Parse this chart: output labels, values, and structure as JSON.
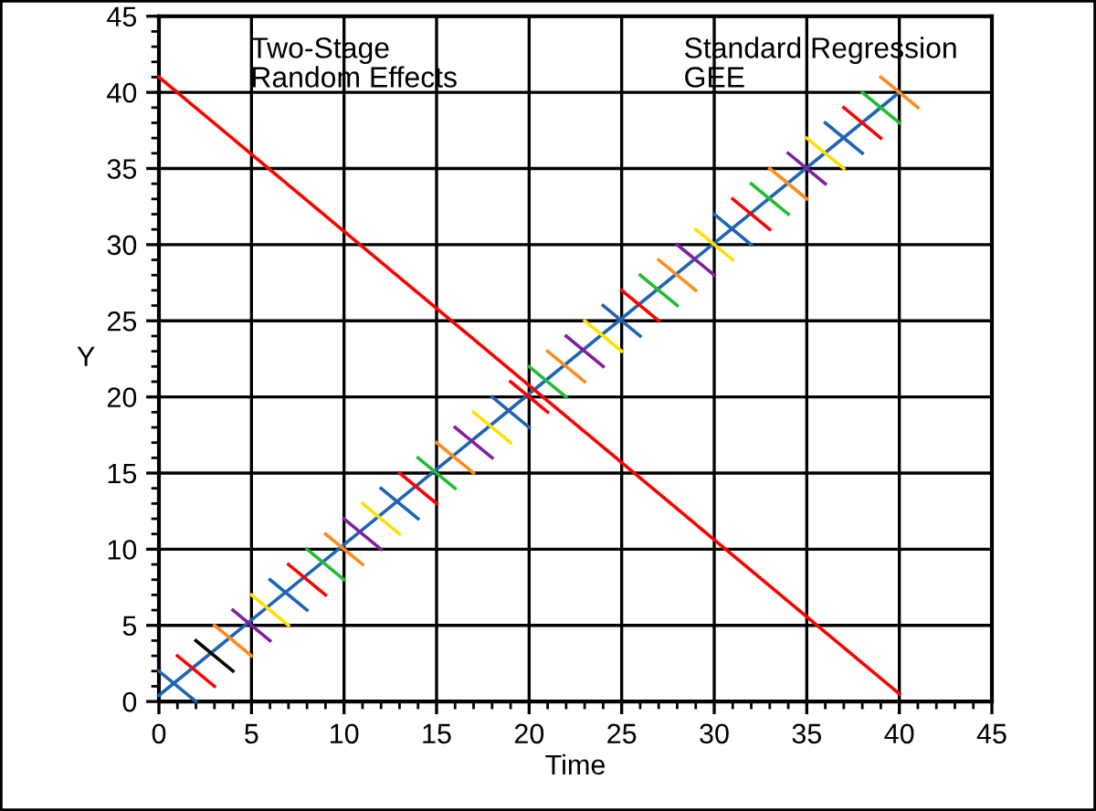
{
  "chart_data": {
    "type": "line",
    "xlabel": "Time",
    "ylabel": "Y",
    "xlim": [
      0,
      45
    ],
    "ylim": [
      0,
      45
    ],
    "xticks": [
      0,
      {
        "value": 1,
        "label": null
      },
      {
        "value": 2,
        "label": null
      },
      {
        "value": 3,
        "label": null
      },
      {
        "value": 4,
        "label": null
      },
      5,
      {
        "value": 6,
        "label": null
      },
      {
        "value": 7,
        "label": null
      },
      {
        "value": 8,
        "label": null
      },
      {
        "value": 9,
        "label": null
      },
      10,
      {
        "value": 11,
        "label": null
      },
      {
        "value": 12,
        "label": null
      },
      {
        "value": 13,
        "label": null
      },
      {
        "value": 14,
        "label": null
      },
      15,
      {
        "value": 16,
        "label": null
      },
      {
        "value": 17,
        "label": null
      },
      {
        "value": 18,
        "label": null
      },
      {
        "value": 19,
        "label": null
      },
      20,
      {
        "value": 21,
        "label": null
      },
      {
        "value": 22,
        "label": null
      },
      {
        "value": 23,
        "label": null
      },
      {
        "value": 24,
        "label": null
      },
      25,
      {
        "value": 26,
        "label": null
      },
      {
        "value": 27,
        "label": null
      },
      {
        "value": 28,
        "label": null
      },
      {
        "value": 29,
        "label": null
      },
      30,
      {
        "value": 31,
        "label": null
      },
      {
        "value": 32,
        "label": null
      },
      {
        "value": 33,
        "label": null
      },
      {
        "value": 34,
        "label": null
      },
      35,
      {
        "value": 36,
        "label": null
      },
      {
        "value": 37,
        "label": null
      },
      {
        "value": 38,
        "label": null
      },
      {
        "value": 39,
        "label": null
      },
      40,
      {
        "value": 41,
        "label": null
      },
      {
        "value": 42,
        "label": null
      },
      {
        "value": 43,
        "label": null
      },
      {
        "value": 44,
        "label": null
      },
      45
    ],
    "yticks": [
      0,
      {
        "value": 1,
        "label": null
      },
      {
        "value": 2,
        "label": null
      },
      {
        "value": 3,
        "label": null
      },
      {
        "value": 4,
        "label": null
      },
      5,
      {
        "value": 6,
        "label": null
      },
      {
        "value": 7,
        "label": null
      },
      {
        "value": 8,
        "label": null
      },
      {
        "value": 9,
        "label": null
      },
      10,
      {
        "value": 11,
        "label": null
      },
      {
        "value": 12,
        "label": null
      },
      {
        "value": 13,
        "label": null
      },
      {
        "value": 14,
        "label": null
      },
      15,
      {
        "value": 16,
        "label": null
      },
      {
        "value": 17,
        "label": null
      },
      {
        "value": 18,
        "label": null
      },
      {
        "value": 19,
        "label": null
      },
      20,
      {
        "value": 21,
        "label": null
      },
      {
        "value": 22,
        "label": null
      },
      {
        "value": 23,
        "label": null
      },
      {
        "value": 24,
        "label": null
      },
      25,
      {
        "value": 26,
        "label": null
      },
      {
        "value": 27,
        "label": null
      },
      {
        "value": 28,
        "label": null
      },
      {
        "value": 29,
        "label": null
      },
      30,
      {
        "value": 31,
        "label": null
      },
      {
        "value": 32,
        "label": null
      },
      {
        "value": 33,
        "label": null
      },
      {
        "value": 34,
        "label": null
      },
      35,
      {
        "value": 36,
        "label": null
      },
      {
        "value": 37,
        "label": null
      },
      {
        "value": 38,
        "label": null
      },
      {
        "value": 39,
        "label": null
      },
      40,
      {
        "value": 41,
        "label": null
      },
      {
        "value": 42,
        "label": null
      },
      {
        "value": 43,
        "label": null
      },
      {
        "value": 44,
        "label": null
      },
      45
    ],
    "grid": true,
    "marker": "none",
    "line_style": "solid",
    "annotations": [
      "Two-Stage\nRandom Effects",
      "Standard Regression\nGEE"
    ],
    "series": [
      {
        "x": [
          0,
          40
        ],
        "values": [
          0.4,
          40
        ],
        "color": "#1e64b4"
      },
      {
        "x": [
          0,
          40
        ],
        "values": [
          41,
          0.5
        ],
        "color": "#ff0000"
      },
      {
        "x": [
          0,
          2
        ],
        "values": [
          2,
          0
        ],
        "color": "#1e64b4"
      },
      {
        "x": [
          1,
          3
        ],
        "values": [
          3,
          1
        ],
        "color": "#ff0000"
      },
      {
        "x": [
          2,
          4
        ],
        "values": [
          4,
          2
        ],
        "color": "#000000"
      },
      {
        "x": [
          3,
          5
        ],
        "values": [
          5,
          3
        ],
        "color": "#ff8c1a"
      },
      {
        "x": [
          4,
          6
        ],
        "values": [
          6,
          4
        ],
        "color": "#80209f"
      },
      {
        "x": [
          5,
          7
        ],
        "values": [
          7,
          5
        ],
        "color": "#ffe000"
      },
      {
        "x": [
          6,
          8
        ],
        "values": [
          8,
          6
        ],
        "color": "#1e64b4"
      },
      {
        "x": [
          7,
          9
        ],
        "values": [
          9,
          7
        ],
        "color": "#ff0000"
      },
      {
        "x": [
          8,
          10
        ],
        "values": [
          10,
          8
        ],
        "color": "#22bb33"
      },
      {
        "x": [
          9,
          11
        ],
        "values": [
          11,
          9
        ],
        "color": "#ff8c1a"
      },
      {
        "x": [
          10,
          12
        ],
        "values": [
          12,
          10
        ],
        "color": "#80209f"
      },
      {
        "x": [
          11,
          13
        ],
        "values": [
          13,
          11
        ],
        "color": "#ffe000"
      },
      {
        "x": [
          12,
          14
        ],
        "values": [
          14,
          12
        ],
        "color": "#1e64b4"
      },
      {
        "x": [
          13,
          15
        ],
        "values": [
          15,
          13
        ],
        "color": "#ff0000"
      },
      {
        "x": [
          14,
          16
        ],
        "values": [
          16,
          14
        ],
        "color": "#22bb33"
      },
      {
        "x": [
          15,
          17
        ],
        "values": [
          17,
          15
        ],
        "color": "#ff8c1a"
      },
      {
        "x": [
          16,
          18
        ],
        "values": [
          18,
          16
        ],
        "color": "#80209f"
      },
      {
        "x": [
          17,
          19
        ],
        "values": [
          19,
          17
        ],
        "color": "#ffe000"
      },
      {
        "x": [
          18,
          20
        ],
        "values": [
          20,
          18
        ],
        "color": "#1e64b4"
      },
      {
        "x": [
          19,
          21
        ],
        "values": [
          21,
          19
        ],
        "color": "#ff0000"
      },
      {
        "x": [
          20,
          22
        ],
        "values": [
          22,
          20
        ],
        "color": "#22bb33"
      },
      {
        "x": [
          21,
          23
        ],
        "values": [
          23,
          21
        ],
        "color": "#ff8c1a"
      },
      {
        "x": [
          22,
          24
        ],
        "values": [
          24,
          22
        ],
        "color": "#80209f"
      },
      {
        "x": [
          23,
          25
        ],
        "values": [
          25,
          23
        ],
        "color": "#ffe000"
      },
      {
        "x": [
          24,
          26
        ],
        "values": [
          26,
          24
        ],
        "color": "#1e64b4"
      },
      {
        "x": [
          25,
          27
        ],
        "values": [
          27,
          25
        ],
        "color": "#ff0000"
      },
      {
        "x": [
          26,
          28
        ],
        "values": [
          28,
          26
        ],
        "color": "#22bb33"
      },
      {
        "x": [
          27,
          29
        ],
        "values": [
          29,
          27
        ],
        "color": "#ff8c1a"
      },
      {
        "x": [
          28,
          30
        ],
        "values": [
          30,
          28
        ],
        "color": "#80209f"
      },
      {
        "x": [
          29,
          31
        ],
        "values": [
          31,
          29
        ],
        "color": "#ffe000"
      },
      {
        "x": [
          30,
          32
        ],
        "values": [
          32,
          30
        ],
        "color": "#1e64b4"
      },
      {
        "x": [
          31,
          33
        ],
        "values": [
          33,
          31
        ],
        "color": "#ff0000"
      },
      {
        "x": [
          32,
          34
        ],
        "values": [
          34,
          32
        ],
        "color": "#22bb33"
      },
      {
        "x": [
          33,
          35
        ],
        "values": [
          35,
          33
        ],
        "color": "#ff8c1a"
      },
      {
        "x": [
          34,
          36
        ],
        "values": [
          36,
          34
        ],
        "color": "#80209f"
      },
      {
        "x": [
          35,
          37
        ],
        "values": [
          37,
          35
        ],
        "color": "#ffe000"
      },
      {
        "x": [
          36,
          38
        ],
        "values": [
          38,
          36
        ],
        "color": "#1e64b4"
      },
      {
        "x": [
          37,
          39
        ],
        "values": [
          39,
          37
        ],
        "color": "#ff0000"
      },
      {
        "x": [
          38,
          40
        ],
        "values": [
          40,
          38
        ],
        "color": "#22bb33"
      },
      {
        "x": [
          39,
          41
        ],
        "values": [
          41,
          39
        ],
        "color": "#ff8c1a"
      }
    ]
  }
}
